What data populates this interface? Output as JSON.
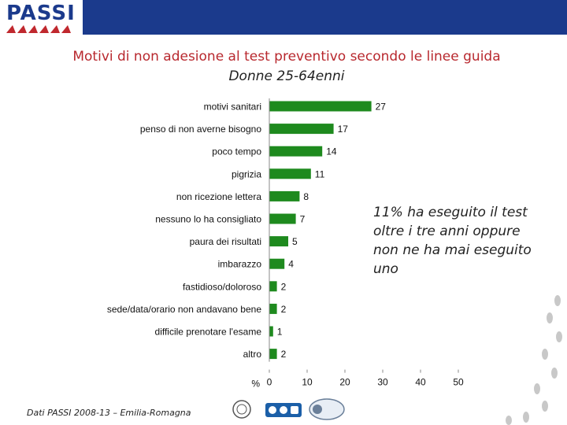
{
  "header": {
    "logo_text": "PASSI"
  },
  "title": "Motivi di non adesione al test preventivo secondo le linee guida",
  "subtitle": "Donne 25-64enni",
  "note": "11% ha eseguito il test oltre i tre anni oppure non ne ha mai eseguito uno",
  "footer": "Dati PASSI 2008-13 – Emilia-Romagna",
  "colors": {
    "bar": "#1e8a1e",
    "title": "#b8282e",
    "header": "#1b3a8c"
  },
  "icons": [
    "passi-logo-icon",
    "institute-seal-icon",
    "ccm-logo-icon",
    "gruppo-logo-icon",
    "footsteps-icon"
  ],
  "chart_data": {
    "type": "bar",
    "orientation": "horizontal",
    "categories": [
      "motivi sanitari",
      "penso di non averne bisogno",
      "poco tempo",
      "pigrizia",
      "non ricezione lettera",
      "nessuno lo ha consigliato",
      "paura dei risultati",
      "imbarazzo",
      "fastidioso/doloroso",
      "sede/data/orario non andavano bene",
      "difficile prenotare l'esame",
      "altro"
    ],
    "values": [
      27,
      17,
      14,
      11,
      8,
      7,
      5,
      4,
      2,
      2,
      1,
      2
    ],
    "xlabel": "%",
    "xlim": [
      0,
      50
    ],
    "xticks": [
      0,
      10,
      20,
      30,
      40,
      50
    ],
    "grid": false,
    "legend": "none"
  }
}
